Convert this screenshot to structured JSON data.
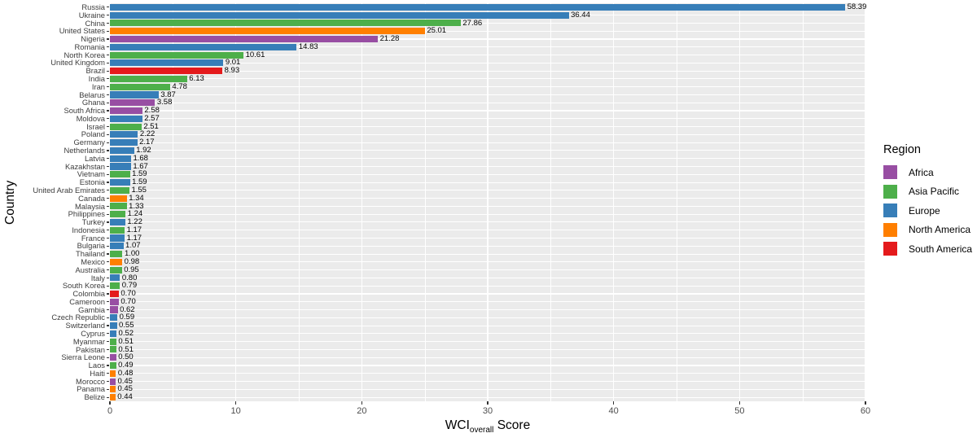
{
  "chart_data": {
    "type": "bar",
    "orientation": "horizontal",
    "ylabel": "Country",
    "xlabel_parts": {
      "prefix": "WCI",
      "subscript": "overall",
      "suffix": " Score"
    },
    "xlim": [
      0,
      60
    ],
    "x_ticks": [
      0,
      10,
      20,
      30,
      40,
      50,
      60
    ],
    "x_minor_ticks": [
      5,
      15,
      25,
      35,
      45,
      55
    ],
    "grid": "on",
    "legend": {
      "title": "Region",
      "position": "right",
      "entries": [
        {
          "label": "Africa",
          "color": "#984EA3"
        },
        {
          "label": "Asia Pacific",
          "color": "#4DAF4A"
        },
        {
          "label": "Europe",
          "color": "#377EB8"
        },
        {
          "label": "North America",
          "color": "#FF7F00"
        },
        {
          "label": "South America",
          "color": "#E41A1C"
        }
      ]
    },
    "region_colors": {
      "Africa": "#984EA3",
      "Asia Pacific": "#4DAF4A",
      "Europe": "#377EB8",
      "North America": "#FF7F00",
      "South America": "#E41A1C"
    },
    "bars": [
      {
        "country": "Russia",
        "value": 58.39,
        "label": "58.39",
        "region": "Europe"
      },
      {
        "country": "Ukraine",
        "value": 36.44,
        "label": "36.44",
        "region": "Europe"
      },
      {
        "country": "China",
        "value": 27.86,
        "label": "27.86",
        "region": "Asia Pacific"
      },
      {
        "country": "United States",
        "value": 25.01,
        "label": "25.01",
        "region": "North America"
      },
      {
        "country": "Nigeria",
        "value": 21.28,
        "label": "21.28",
        "region": "Africa"
      },
      {
        "country": "Romania",
        "value": 14.83,
        "label": "14.83",
        "region": "Europe"
      },
      {
        "country": "North Korea",
        "value": 10.61,
        "label": "10.61",
        "region": "Asia Pacific"
      },
      {
        "country": "United Kingdom",
        "value": 9.01,
        "label": "9.01",
        "region": "Europe"
      },
      {
        "country": "Brazil",
        "value": 8.93,
        "label": "8.93",
        "region": "South America"
      },
      {
        "country": "India",
        "value": 6.13,
        "label": "6.13",
        "region": "Asia Pacific"
      },
      {
        "country": "Iran",
        "value": 4.78,
        "label": "4.78",
        "region": "Asia Pacific"
      },
      {
        "country": "Belarus",
        "value": 3.87,
        "label": "3.87",
        "region": "Europe"
      },
      {
        "country": "Ghana",
        "value": 3.58,
        "label": "3.58",
        "region": "Africa"
      },
      {
        "country": "South Africa",
        "value": 2.58,
        "label": "2.58",
        "region": "Africa"
      },
      {
        "country": "Moldova",
        "value": 2.57,
        "label": "2.57",
        "region": "Europe"
      },
      {
        "country": "Israel",
        "value": 2.51,
        "label": "2.51",
        "region": "Asia Pacific"
      },
      {
        "country": "Poland",
        "value": 2.22,
        "label": "2.22",
        "region": "Europe"
      },
      {
        "country": "Germany",
        "value": 2.17,
        "label": "2.17",
        "region": "Europe"
      },
      {
        "country": "Netherlands",
        "value": 1.92,
        "label": "1.92",
        "region": "Europe"
      },
      {
        "country": "Latvia",
        "value": 1.68,
        "label": "1.68",
        "region": "Europe"
      },
      {
        "country": "Kazakhstan",
        "value": 1.67,
        "label": "1.67",
        "region": "Europe"
      },
      {
        "country": "Vietnam",
        "value": 1.59,
        "label": "1.59",
        "region": "Asia Pacific"
      },
      {
        "country": "Estonia",
        "value": 1.59,
        "label": "1.59",
        "region": "Europe"
      },
      {
        "country": "United Arab Emirates",
        "value": 1.55,
        "label": "1.55",
        "region": "Asia Pacific"
      },
      {
        "country": "Canada",
        "value": 1.34,
        "label": "1.34",
        "region": "North America"
      },
      {
        "country": "Malaysia",
        "value": 1.33,
        "label": "1.33",
        "region": "Asia Pacific"
      },
      {
        "country": "Philippines",
        "value": 1.24,
        "label": "1.24",
        "region": "Asia Pacific"
      },
      {
        "country": "Turkey",
        "value": 1.22,
        "label": "1.22",
        "region": "Europe"
      },
      {
        "country": "Indonesia",
        "value": 1.17,
        "label": "1.17",
        "region": "Asia Pacific"
      },
      {
        "country": "France",
        "value": 1.17,
        "label": "1.17",
        "region": "Europe"
      },
      {
        "country": "Bulgaria",
        "value": 1.07,
        "label": "1.07",
        "region": "Europe"
      },
      {
        "country": "Thailand",
        "value": 1.0,
        "label": "1.00",
        "region": "Asia Pacific"
      },
      {
        "country": "Mexico",
        "value": 0.98,
        "label": "0.98",
        "region": "North America"
      },
      {
        "country": "Australia",
        "value": 0.95,
        "label": "0.95",
        "region": "Asia Pacific"
      },
      {
        "country": "Italy",
        "value": 0.8,
        "label": "0.80",
        "region": "Europe"
      },
      {
        "country": "South Korea",
        "value": 0.79,
        "label": "0.79",
        "region": "Asia Pacific"
      },
      {
        "country": "Colombia",
        "value": 0.7,
        "label": "0.70",
        "region": "South America"
      },
      {
        "country": "Cameroon",
        "value": 0.7,
        "label": "0.70",
        "region": "Africa"
      },
      {
        "country": "Gambia",
        "value": 0.62,
        "label": "0.62",
        "region": "Africa"
      },
      {
        "country": "Czech Republic",
        "value": 0.59,
        "label": "0.59",
        "region": "Europe"
      },
      {
        "country": "Switzerland",
        "value": 0.55,
        "label": "0.55",
        "region": "Europe"
      },
      {
        "country": "Cyprus",
        "value": 0.52,
        "label": "0.52",
        "region": "Europe"
      },
      {
        "country": "Myanmar",
        "value": 0.51,
        "label": "0.51",
        "region": "Asia Pacific"
      },
      {
        "country": "Pakistan",
        "value": 0.51,
        "label": "0.51",
        "region": "Asia Pacific"
      },
      {
        "country": "Sierra Leone",
        "value": 0.5,
        "label": "0.50",
        "region": "Africa"
      },
      {
        "country": "Laos",
        "value": 0.49,
        "label": "0.49",
        "region": "Asia Pacific"
      },
      {
        "country": "Haiti",
        "value": 0.48,
        "label": "0.48",
        "region": "North America"
      },
      {
        "country": "Morocco",
        "value": 0.45,
        "label": "0.45",
        "region": "Africa"
      },
      {
        "country": "Panama",
        "value": 0.45,
        "label": "0.45",
        "region": "North America"
      },
      {
        "country": "Belize",
        "value": 0.44,
        "label": "0.44",
        "region": "North America"
      }
    ]
  },
  "colors": {
    "panel_background": "#EBEBEB",
    "grid_line": "#FFFFFF",
    "axis_text": "#4D4D4D",
    "axis_title": "#000000",
    "value_label": "#000000"
  }
}
